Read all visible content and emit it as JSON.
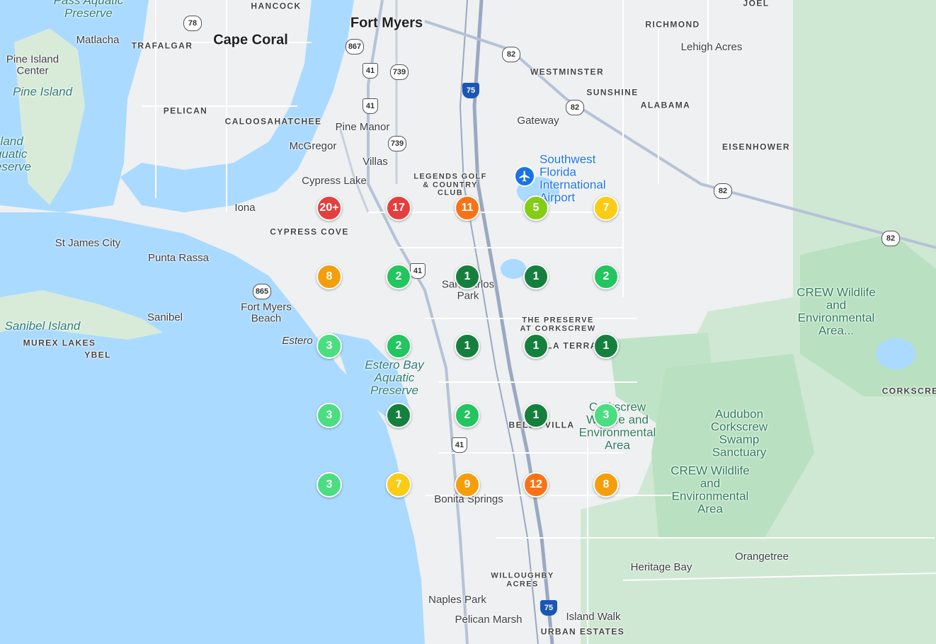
{
  "map": {
    "cities": [
      {
        "id": "fort-myers",
        "text": "Fort Myers"
      },
      {
        "id": "cape-coral",
        "text": "Cape Coral"
      }
    ],
    "towns": [
      {
        "id": "matlacha",
        "text": "Matlacha"
      },
      {
        "id": "pine-island-center",
        "text": "Pine Island Center"
      },
      {
        "id": "pine-manor",
        "text": "Pine Manor"
      },
      {
        "id": "mcgregor",
        "text": "McGregor"
      },
      {
        "id": "villas",
        "text": "Villas"
      },
      {
        "id": "cypress-lake",
        "text": "Cypress Lake"
      },
      {
        "id": "iona",
        "text": "Iona"
      },
      {
        "id": "gateway",
        "text": "Gateway"
      },
      {
        "id": "lehigh-acres",
        "text": "Lehigh Acres"
      },
      {
        "id": "st-james-city",
        "text": "St James City"
      },
      {
        "id": "punta-rassa",
        "text": "Punta Rassa"
      },
      {
        "id": "fort-myers-beach",
        "text": "Fort Myers Beach"
      },
      {
        "id": "sanibel",
        "text": "Sanibel"
      },
      {
        "id": "estero",
        "text": "Estero"
      },
      {
        "id": "san-carlos-park",
        "text": "San Carlos Park"
      },
      {
        "id": "bonita-springs",
        "text": "Bonita Springs"
      },
      {
        "id": "naples-park",
        "text": "Naples Park"
      },
      {
        "id": "pelican-marsh",
        "text": "Pelican Marsh"
      },
      {
        "id": "island-walk",
        "text": "Island Walk"
      },
      {
        "id": "heritage-bay",
        "text": "Heritage Bay"
      },
      {
        "id": "orangetree",
        "text": "Orangetree"
      }
    ],
    "neighborhoods": [
      {
        "id": "hancock",
        "text": "HANCOCK"
      },
      {
        "id": "trafalgar",
        "text": "TRAFALGAR"
      },
      {
        "id": "pelican",
        "text": "PELICAN"
      },
      {
        "id": "caloosahatchee",
        "text": "CALOOSAHATCHEE"
      },
      {
        "id": "richmond",
        "text": "RICHMOND"
      },
      {
        "id": "joel",
        "text": "JOEL"
      },
      {
        "id": "westminster",
        "text": "WESTMINSTER"
      },
      {
        "id": "sunshine",
        "text": "SUNSHINE"
      },
      {
        "id": "alabama",
        "text": "ALABAMA"
      },
      {
        "id": "eisenhower",
        "text": "EISENHOWER"
      },
      {
        "id": "legends",
        "text": "LEGENDS GOLF & COUNTRY CLUB"
      },
      {
        "id": "cypress-cove",
        "text": "CYPRESS COVE"
      },
      {
        "id": "preserve-corkscrew",
        "text": "THE PRESERVE AT CORKSCREW"
      },
      {
        "id": "la-terra",
        "text": "LA TERRA"
      },
      {
        "id": "bella-villa",
        "text": "BELLA VILLA"
      },
      {
        "id": "murex-lakes",
        "text": "MUREX LAKES"
      },
      {
        "id": "ybel",
        "text": "YBEL"
      },
      {
        "id": "willoughby-acres",
        "text": "WILLOUGHBY ACRES"
      },
      {
        "id": "urban-estates",
        "text": "URBAN ESTATES"
      },
      {
        "id": "corkscrew",
        "text": "CORKSCREW"
      }
    ],
    "water_labels": [
      {
        "id": "pass-aquatic-preserve",
        "text": "Pass Aquatic Preserve"
      },
      {
        "id": "pine-island",
        "text": "Pine Island"
      },
      {
        "id": "island-aquatic-preserve",
        "text": "Island Aquatic Preserve"
      },
      {
        "id": "sanibel-island",
        "text": "Sanibel Island"
      },
      {
        "id": "estero-bay",
        "text": "Estero Bay Aquatic Preserve"
      }
    ],
    "park_labels": [
      {
        "id": "crew-1",
        "text": "CREW Wildlife and Environmental Area..."
      },
      {
        "id": "crew-2",
        "text": "Corkscrew Wildlife and Environmental Area"
      },
      {
        "id": "audubon",
        "text": "Audubon Corkscrew Swamp Sanctuary"
      },
      {
        "id": "crew-3",
        "text": "CREW Wildlife and Environmental Area"
      }
    ],
    "airport": {
      "text": "Southwest Florida International Airport",
      "icon": "airplane-icon"
    },
    "route_shields": [
      {
        "id": "r78",
        "type": "state",
        "text": "78"
      },
      {
        "id": "r867",
        "type": "state",
        "text": "867"
      },
      {
        "id": "r41a",
        "type": "us",
        "text": "41"
      },
      {
        "id": "r739a",
        "type": "state",
        "text": "739"
      },
      {
        "id": "r41b",
        "type": "us",
        "text": "41"
      },
      {
        "id": "r739b",
        "type": "state",
        "text": "739"
      },
      {
        "id": "r75a",
        "type": "interstate",
        "text": "75"
      },
      {
        "id": "r82a",
        "type": "state",
        "text": "82"
      },
      {
        "id": "r82b",
        "type": "state",
        "text": "82"
      },
      {
        "id": "r82c",
        "type": "state",
        "text": "82"
      },
      {
        "id": "r82d",
        "type": "state",
        "text": "82"
      },
      {
        "id": "r41c",
        "type": "us",
        "text": "41"
      },
      {
        "id": "r865",
        "type": "state",
        "text": "865"
      },
      {
        "id": "r41d",
        "type": "us",
        "text": "41"
      },
      {
        "id": "r75b",
        "type": "interstate",
        "text": "75"
      }
    ],
    "clusters": [
      {
        "id": "c1",
        "count": "20+",
        "color": "#e53e3e"
      },
      {
        "id": "c2",
        "count": "17",
        "color": "#e53e3e"
      },
      {
        "id": "c3",
        "count": "11",
        "color": "#f97316"
      },
      {
        "id": "c4",
        "count": "5",
        "color": "#84cc16"
      },
      {
        "id": "c5",
        "count": "7",
        "color": "#facc15"
      },
      {
        "id": "c6",
        "count": "8",
        "color": "#f59e0b"
      },
      {
        "id": "c7",
        "count": "2",
        "color": "#22c55e"
      },
      {
        "id": "c8",
        "count": "1",
        "color": "#15803d"
      },
      {
        "id": "c9",
        "count": "1",
        "color": "#15803d"
      },
      {
        "id": "c10",
        "count": "2",
        "color": "#22c55e"
      },
      {
        "id": "c11",
        "count": "3",
        "color": "#4ade80"
      },
      {
        "id": "c12",
        "count": "2",
        "color": "#22c55e"
      },
      {
        "id": "c13",
        "count": "1",
        "color": "#15803d"
      },
      {
        "id": "c14",
        "count": "1",
        "color": "#15803d"
      },
      {
        "id": "c15",
        "count": "1",
        "color": "#15803d"
      },
      {
        "id": "c16",
        "count": "3",
        "color": "#4ade80"
      },
      {
        "id": "c17",
        "count": "1",
        "color": "#15803d"
      },
      {
        "id": "c18",
        "count": "2",
        "color": "#22c55e"
      },
      {
        "id": "c19",
        "count": "1",
        "color": "#15803d"
      },
      {
        "id": "c20",
        "count": "3",
        "color": "#4ade80"
      },
      {
        "id": "c21",
        "count": "3",
        "color": "#4ade80"
      },
      {
        "id": "c22",
        "count": "7",
        "color": "#facc15"
      },
      {
        "id": "c23",
        "count": "9",
        "color": "#f59e0b"
      },
      {
        "id": "c24",
        "count": "12",
        "color": "#f97316"
      },
      {
        "id": "c25",
        "count": "8",
        "color": "#f59e0b"
      }
    ],
    "colors": {
      "water": "#aadaff",
      "land": "#eef0f2",
      "park": "#c8e6c9",
      "road": "#ffffff",
      "highway": "#9aa9c2"
    }
  }
}
